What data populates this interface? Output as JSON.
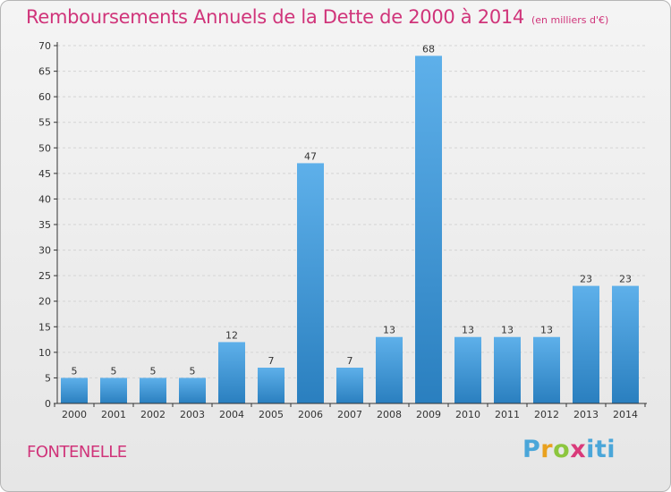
{
  "header": {
    "title": "Remboursements Annuels de la Dette de 2000 à 2014",
    "unit": "(en milliers d'€)"
  },
  "footer": {
    "commune": "FONTENELLE",
    "logo_text": "Proxiti"
  },
  "colors": {
    "accent": "#d0347a",
    "bar_top": "#5eb0ea",
    "bar_bottom": "#2a7fbf",
    "grid": "#d4d4d4",
    "axis": "#333333"
  },
  "chart_data": {
    "type": "bar",
    "title": "Remboursements Annuels de la Dette de 2000 à 2014",
    "subtitle": "(en milliers d'€)",
    "categories": [
      "2000",
      "2001",
      "2002",
      "2003",
      "2004",
      "2005",
      "2006",
      "2007",
      "2008",
      "2009",
      "2010",
      "2011",
      "2012",
      "2013",
      "2014"
    ],
    "values": [
      5,
      5,
      5,
      5,
      12,
      7,
      47,
      7,
      13,
      68,
      13,
      13,
      13,
      23,
      23
    ],
    "ylim": [
      0,
      70
    ],
    "yticks": [
      0,
      5,
      10,
      15,
      20,
      25,
      30,
      35,
      40,
      45,
      50,
      55,
      60,
      65,
      70
    ],
    "grid": true,
    "data_labels": true
  }
}
